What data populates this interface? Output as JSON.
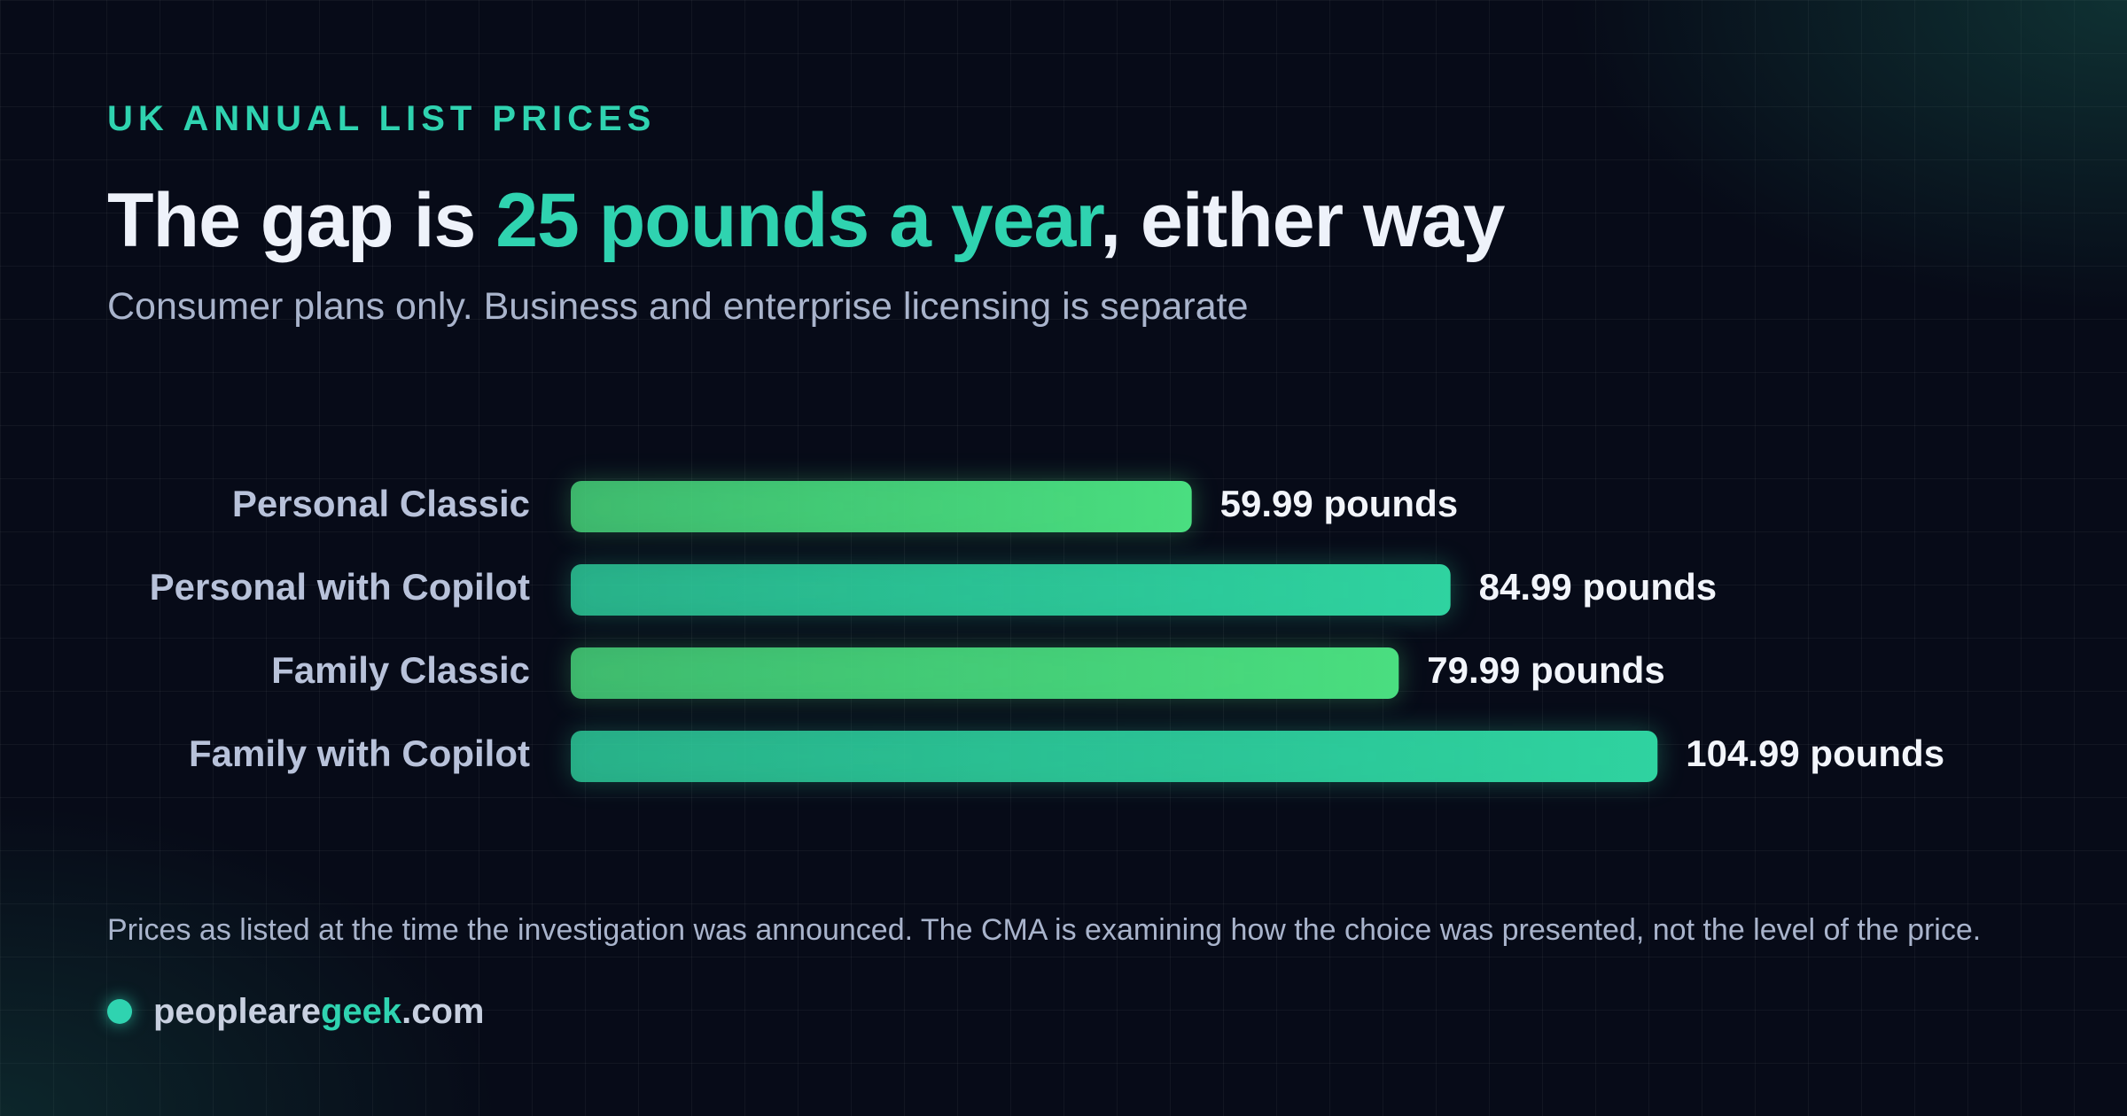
{
  "eyebrow": "UK ANNUAL LIST PRICES",
  "footer": {
    "note": "Prices as listed at the time the investigation was announced. The CMA is examining how the choice was presented, not the level of the price.",
    "source": [
      "peopleare",
      "geek",
      ".com"
    ]
  },
  "chart_data": {
    "type": "bar",
    "orientation": "horizontal",
    "title": [
      "The gap is ",
      "25 pounds a year",
      ", either way"
    ],
    "subtitle": "Consumer plans only. Business and enterprise licensing is separate",
    "categories": [
      "Personal Classic",
      "Personal with Copilot",
      "Family Classic",
      "Family with Copilot"
    ],
    "values": [
      59.99,
      84.99,
      79.99,
      104.99
    ],
    "value_labels": [
      "59.99 pounds",
      "84.99 pounds",
      "79.99 pounds",
      "104.99 pounds"
    ],
    "colors": [
      "#4ade80",
      "#2fd3a0",
      "#4ade80",
      "#2fd3a0"
    ]
  }
}
